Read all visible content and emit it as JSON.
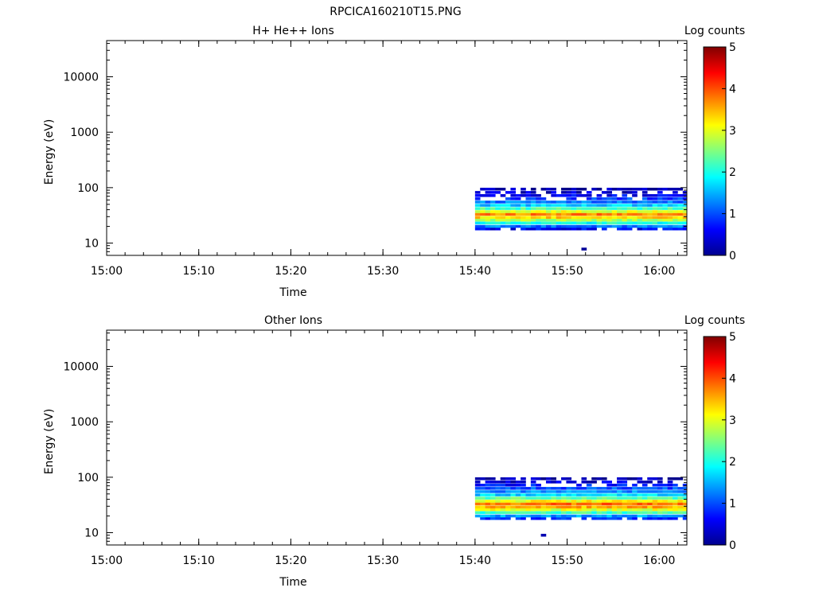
{
  "figure_title": "RPCICA160210T15.PNG",
  "chart_data": [
    {
      "type": "heatmap",
      "title": "H+ He++ Ions",
      "xlabel": "Time",
      "ylabel": "Energy (eV)",
      "x_ticks": [
        "15:00",
        "15:10",
        "15:20",
        "15:30",
        "15:40",
        "15:50",
        "16:00"
      ],
      "xlim": [
        "15:00",
        "16:03"
      ],
      "y_scale": "log",
      "y_ticks": [
        10,
        100,
        1000,
        10000
      ],
      "ylim": [
        6,
        45000
      ],
      "colorbar": {
        "label": "Log counts",
        "range": [
          0,
          5
        ],
        "ticks": [
          0,
          1,
          2,
          3,
          4,
          5
        ]
      },
      "data_time_range": [
        "15:40",
        "16:03"
      ],
      "energy_profile": [
        {
          "energy": 7.8,
          "log_counts": 0.1
        },
        {
          "energy": 18,
          "log_counts": 0.6
        },
        {
          "energy": 20,
          "log_counts": 1.2
        },
        {
          "energy": 23,
          "log_counts": 2.0
        },
        {
          "energy": 26,
          "log_counts": 2.7
        },
        {
          "energy": 29,
          "log_counts": 3.3
        },
        {
          "energy": 33,
          "log_counts": 3.7
        },
        {
          "energy": 37,
          "log_counts": 3.0
        },
        {
          "energy": 42,
          "log_counts": 2.2
        },
        {
          "energy": 48,
          "log_counts": 1.6
        },
        {
          "energy": 55,
          "log_counts": 1.2
        },
        {
          "energy": 63,
          "log_counts": 0.9
        },
        {
          "energy": 72,
          "log_counts": 0.6
        },
        {
          "energy": 82,
          "log_counts": 0.4
        },
        {
          "energy": 94,
          "log_counts": 0.2
        }
      ]
    },
    {
      "type": "heatmap",
      "title": "Other Ions",
      "xlabel": "Time",
      "ylabel": "Energy (eV)",
      "x_ticks": [
        "15:00",
        "15:10",
        "15:20",
        "15:30",
        "15:40",
        "15:50",
        "16:00"
      ],
      "xlim": [
        "15:00",
        "16:03"
      ],
      "y_scale": "log",
      "y_ticks": [
        10,
        100,
        1000,
        10000
      ],
      "ylim": [
        6,
        45000
      ],
      "colorbar": {
        "label": "Log counts",
        "range": [
          0,
          5
        ],
        "ticks": [
          0,
          1,
          2,
          3,
          4,
          5
        ]
      },
      "data_time_range": [
        "15:40",
        "16:03"
      ],
      "energy_profile": [
        {
          "energy": 9,
          "log_counts": 0.1
        },
        {
          "energy": 18,
          "log_counts": 0.8
        },
        {
          "energy": 20,
          "log_counts": 1.4
        },
        {
          "energy": 23,
          "log_counts": 2.2
        },
        {
          "energy": 26,
          "log_counts": 3.0
        },
        {
          "energy": 29,
          "log_counts": 3.5
        },
        {
          "energy": 33,
          "log_counts": 3.8
        },
        {
          "energy": 37,
          "log_counts": 3.1
        },
        {
          "energy": 42,
          "log_counts": 2.3
        },
        {
          "energy": 48,
          "log_counts": 1.7
        },
        {
          "energy": 55,
          "log_counts": 1.3
        },
        {
          "energy": 63,
          "log_counts": 1.0
        },
        {
          "energy": 72,
          "log_counts": 0.7
        },
        {
          "energy": 82,
          "log_counts": 0.4
        },
        {
          "energy": 94,
          "log_counts": 0.2
        }
      ]
    }
  ]
}
